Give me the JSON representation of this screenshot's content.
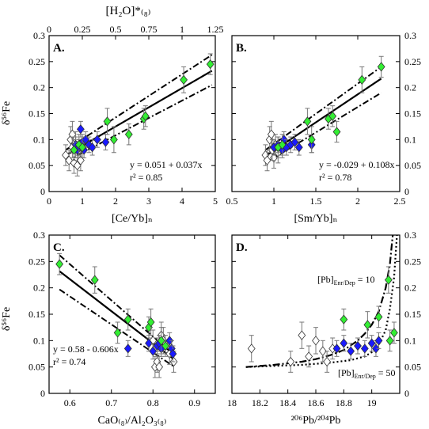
{
  "figure": {
    "ylabel_left": "δ⁵⁶Fe",
    "top_axis_label": "[H₂O]*₍₈₎"
  },
  "chart_data": [
    {
      "id": "A",
      "type": "scatter",
      "panel_label": "A.",
      "xlabel": "[Ce/Yb]ₙ",
      "ylabel": "δ⁵⁶Fe",
      "xlim": [
        0,
        5
      ],
      "ylim": [
        0,
        0.3
      ],
      "x_ticks": [
        0,
        1,
        2,
        3,
        4,
        5
      ],
      "x_tick_labels": [
        "0",
        "1",
        "2",
        "3",
        "4",
        "5"
      ],
      "y_ticks": [
        0,
        0.05,
        0.1,
        0.15,
        0.2,
        0.25,
        0.3
      ],
      "y_tick_labels": [
        "0",
        "0.05",
        "0.1",
        "0.15",
        "0.2",
        "0.25",
        "0.3"
      ],
      "top_axis": {
        "label": "[H₂O]*₍₈₎",
        "lim": [
          0,
          1.25
        ],
        "ticks": [
          0,
          0.25,
          0.5,
          0.75,
          1,
          1.25
        ],
        "tick_labels": [
          "0",
          "0.25",
          "0.5",
          "0.75",
          "1",
          "1.25"
        ]
      },
      "equation": "y = 0.051 + 0.037x",
      "r2": "r² = 0.85",
      "fit": {
        "intercept": 0.051,
        "slope": 0.037,
        "x_range": [
          0.5,
          4.9
        ]
      },
      "confidence_band": {
        "lower": [
          [
            0.5,
            0.058
          ],
          [
            4.9,
            0.205
          ]
        ],
        "upper": [
          [
            0.5,
            0.08
          ],
          [
            4.9,
            0.263
          ]
        ]
      },
      "series": [
        {
          "marker": "open-diamond",
          "color": "#ffffff",
          "points": [
            {
              "x": 0.5,
              "y": 0.07,
              "err": 0.02
            },
            {
              "x": 0.6,
              "y": 0.06,
              "err": 0.02
            },
            {
              "x": 0.65,
              "y": 0.1,
              "err": 0.025
            },
            {
              "x": 0.7,
              "y": 0.11,
              "err": 0.025
            },
            {
              "x": 0.75,
              "y": 0.055,
              "err": 0.02
            },
            {
              "x": 0.8,
              "y": 0.09,
              "err": 0.025
            },
            {
              "x": 0.85,
              "y": 0.05,
              "err": 0.02
            },
            {
              "x": 0.9,
              "y": 0.08,
              "err": 0.02
            },
            {
              "x": 0.7,
              "y": 0.085,
              "err": 0.02
            },
            {
              "x": 0.95,
              "y": 0.06,
              "err": 0.02
            }
          ]
        },
        {
          "marker": "filled-diamond",
          "color": "#1a1aff",
          "points": [
            {
              "x": 0.8,
              "y": 0.09,
              "err": 0.015
            },
            {
              "x": 0.85,
              "y": 0.08,
              "err": 0.015
            },
            {
              "x": 0.9,
              "y": 0.085,
              "err": 0.015
            },
            {
              "x": 0.95,
              "y": 0.12,
              "err": 0.015
            },
            {
              "x": 1.0,
              "y": 0.095,
              "err": 0.015
            },
            {
              "x": 1.05,
              "y": 0.08,
              "err": 0.015
            },
            {
              "x": 1.1,
              "y": 0.1,
              "err": 0.015
            },
            {
              "x": 1.2,
              "y": 0.09,
              "err": 0.015
            },
            {
              "x": 1.3,
              "y": 0.085,
              "err": 0.015
            },
            {
              "x": 1.45,
              "y": 0.1,
              "err": 0.015
            },
            {
              "x": 1.7,
              "y": 0.095,
              "err": 0.015
            }
          ]
        },
        {
          "marker": "filled-diamond",
          "color": "#33ee33",
          "points": [
            {
              "x": 0.75,
              "y": 0.08,
              "err": 0.02
            },
            {
              "x": 0.9,
              "y": 0.09,
              "err": 0.02
            },
            {
              "x": 1.0,
              "y": 0.085,
              "err": 0.02
            },
            {
              "x": 1.75,
              "y": 0.135,
              "err": 0.025
            },
            {
              "x": 1.95,
              "y": 0.1,
              "err": 0.025
            },
            {
              "x": 2.4,
              "y": 0.11,
              "err": 0.02
            },
            {
              "x": 2.85,
              "y": 0.14,
              "err": 0.02
            },
            {
              "x": 2.9,
              "y": 0.145,
              "err": 0.02
            },
            {
              "x": 4.05,
              "y": 0.215,
              "err": 0.025
            },
            {
              "x": 4.85,
              "y": 0.245,
              "err": 0.02
            }
          ]
        }
      ]
    },
    {
      "id": "B",
      "type": "scatter",
      "panel_label": "B.",
      "xlabel": "[Sm/Yb]ₙ",
      "ylabel": "",
      "xlim": [
        0.5,
        2.5
      ],
      "ylim": [
        0,
        0.3
      ],
      "x_ticks": [
        0.5,
        1,
        1.5,
        2,
        2.5
      ],
      "x_tick_labels": [
        "0.5",
        "1",
        "1.5",
        "2",
        "2.5"
      ],
      "y_ticks": [
        0,
        0.05,
        0.1,
        0.15,
        0.2,
        0.25,
        0.3
      ],
      "y_tick_labels": [
        "0",
        "0.05",
        "0.1",
        "0.15",
        "0.2",
        "0.25",
        "0.3"
      ],
      "equation": "y = -0.029 + 0.108x",
      "r2": "r² = 0.78",
      "fit": {
        "intercept": -0.029,
        "slope": 0.108,
        "x_range": [
          0.9,
          2.28
        ]
      },
      "confidence_band": {
        "lower": [
          [
            0.9,
            0.055
          ],
          [
            2.28,
            0.19
          ]
        ],
        "upper": [
          [
            0.9,
            0.08
          ],
          [
            2.28,
            0.24
          ]
        ]
      },
      "series": [
        {
          "marker": "open-diamond",
          "color": "#ffffff",
          "points": [
            {
              "x": 0.9,
              "y": 0.07,
              "err": 0.02
            },
            {
              "x": 0.92,
              "y": 0.06,
              "err": 0.02
            },
            {
              "x": 0.95,
              "y": 0.1,
              "err": 0.025
            },
            {
              "x": 0.97,
              "y": 0.11,
              "err": 0.025
            },
            {
              "x": 1.0,
              "y": 0.065,
              "err": 0.02
            },
            {
              "x": 1.02,
              "y": 0.09,
              "err": 0.02
            },
            {
              "x": 1.05,
              "y": 0.075,
              "err": 0.02
            },
            {
              "x": 0.98,
              "y": 0.08,
              "err": 0.02
            }
          ]
        },
        {
          "marker": "filled-diamond",
          "color": "#1a1aff",
          "points": [
            {
              "x": 1.0,
              "y": 0.085,
              "err": 0.015
            },
            {
              "x": 1.05,
              "y": 0.09,
              "err": 0.015
            },
            {
              "x": 1.1,
              "y": 0.08,
              "err": 0.015
            },
            {
              "x": 1.12,
              "y": 0.1,
              "err": 0.015
            },
            {
              "x": 1.15,
              "y": 0.085,
              "err": 0.015
            },
            {
              "x": 1.2,
              "y": 0.09,
              "err": 0.015
            },
            {
              "x": 1.25,
              "y": 0.095,
              "err": 0.015
            },
            {
              "x": 1.3,
              "y": 0.085,
              "err": 0.015
            },
            {
              "x": 1.45,
              "y": 0.09,
              "err": 0.015
            }
          ]
        },
        {
          "marker": "filled-diamond",
          "color": "#33ee33",
          "points": [
            {
              "x": 1.05,
              "y": 0.085,
              "err": 0.02
            },
            {
              "x": 1.1,
              "y": 0.09,
              "err": 0.02
            },
            {
              "x": 1.4,
              "y": 0.135,
              "err": 0.025
            },
            {
              "x": 1.45,
              "y": 0.1,
              "err": 0.025
            },
            {
              "x": 1.65,
              "y": 0.14,
              "err": 0.02
            },
            {
              "x": 1.7,
              "y": 0.145,
              "err": 0.02
            },
            {
              "x": 1.75,
              "y": 0.115,
              "err": 0.02
            },
            {
              "x": 2.05,
              "y": 0.215,
              "err": 0.025
            },
            {
              "x": 2.28,
              "y": 0.24,
              "err": 0.02
            }
          ]
        }
      ]
    },
    {
      "id": "C",
      "type": "scatter",
      "panel_label": "C.",
      "xlabel": "CaO₍₈₎/Al₂O₃₍₈₎",
      "ylabel": "δ⁵⁶Fe",
      "xlim": [
        0.55,
        0.95
      ],
      "ylim": [
        0,
        0.3
      ],
      "x_ticks": [
        0.6,
        0.7,
        0.8,
        0.9
      ],
      "x_tick_labels": [
        "0.6",
        "0.7",
        "0.8",
        "0.9"
      ],
      "y_ticks": [
        0,
        0.05,
        0.1,
        0.15,
        0.2,
        0.25,
        0.3
      ],
      "y_tick_labels": [
        "0",
        "0.05",
        "0.1",
        "0.15",
        "0.2",
        "0.25",
        "0.3"
      ],
      "equation": "y = 0.58 - 0.606x",
      "r2": "r² = 0.74",
      "fit": {
        "intercept": 0.58,
        "slope": -0.606,
        "x_range": [
          0.575,
          0.852
        ]
      },
      "confidence_band": {
        "lower": [
          [
            0.575,
            0.197
          ],
          [
            0.852,
            0.05
          ]
        ],
        "upper": [
          [
            0.575,
            0.262
          ],
          [
            0.852,
            0.072
          ]
        ]
      },
      "series": [
        {
          "marker": "open-diamond",
          "color": "#ffffff",
          "points": [
            {
              "x": 0.8,
              "y": 0.1,
              "err": 0.02
            },
            {
              "x": 0.805,
              "y": 0.05,
              "err": 0.02
            },
            {
              "x": 0.81,
              "y": 0.06,
              "err": 0.02
            },
            {
              "x": 0.815,
              "y": 0.05,
              "err": 0.02
            },
            {
              "x": 0.82,
              "y": 0.11,
              "err": 0.025
            },
            {
              "x": 0.825,
              "y": 0.1,
              "err": 0.025
            },
            {
              "x": 0.84,
              "y": 0.075,
              "err": 0.02
            },
            {
              "x": 0.85,
              "y": 0.06,
              "err": 0.02
            }
          ]
        },
        {
          "marker": "filled-diamond",
          "color": "#1a1aff",
          "points": [
            {
              "x": 0.74,
              "y": 0.085,
              "err": 0.015
            },
            {
              "x": 0.79,
              "y": 0.095,
              "err": 0.015
            },
            {
              "x": 0.8,
              "y": 0.08,
              "err": 0.015
            },
            {
              "x": 0.81,
              "y": 0.09,
              "err": 0.015
            },
            {
              "x": 0.815,
              "y": 0.095,
              "err": 0.015
            },
            {
              "x": 0.82,
              "y": 0.085,
              "err": 0.015
            },
            {
              "x": 0.84,
              "y": 0.1,
              "err": 0.015
            },
            {
              "x": 0.845,
              "y": 0.085,
              "err": 0.015
            },
            {
              "x": 0.848,
              "y": 0.075,
              "err": 0.015
            }
          ]
        },
        {
          "marker": "filled-diamond",
          "color": "#33ee33",
          "points": [
            {
              "x": 0.575,
              "y": 0.245,
              "err": 0.02
            },
            {
              "x": 0.66,
              "y": 0.215,
              "err": 0.025
            },
            {
              "x": 0.715,
              "y": 0.115,
              "err": 0.02
            },
            {
              "x": 0.74,
              "y": 0.14,
              "err": 0.02
            },
            {
              "x": 0.79,
              "y": 0.125,
              "err": 0.02
            },
            {
              "x": 0.795,
              "y": 0.135,
              "err": 0.025
            },
            {
              "x": 0.82,
              "y": 0.1,
              "err": 0.025
            },
            {
              "x": 0.83,
              "y": 0.09,
              "err": 0.02
            }
          ]
        }
      ]
    },
    {
      "id": "D",
      "type": "scatter",
      "panel_label": "D.",
      "xlabel": "²⁰⁶Pb/²⁰⁴Pb",
      "ylabel": "",
      "xlim": [
        18,
        19.2
      ],
      "ylim": [
        0,
        0.3
      ],
      "x_ticks": [
        18,
        18.2,
        18.4,
        18.6,
        18.8,
        19
      ],
      "x_tick_labels": [
        "18",
        "18.2",
        "18.4",
        "18.6",
        "18.8",
        "19"
      ],
      "y_ticks": [
        0,
        0.05,
        0.1,
        0.15,
        0.2,
        0.25,
        0.3
      ],
      "y_tick_labels": [
        "0",
        "0.05",
        "0.1",
        "0.15",
        "0.2",
        "0.25",
        "0.3"
      ],
      "mixing_curves": [
        {
          "label": "[Pb]Enr/Dep = 10",
          "label_main": "[Pb]",
          "label_sub": "Enr/Dep",
          "label_tail": " = 10",
          "style": "dashdot",
          "points": [
            [
              18.1,
              0.05
            ],
            [
              18.3,
              0.054
            ],
            [
              18.5,
              0.06
            ],
            [
              18.6,
              0.065
            ],
            [
              18.7,
              0.072
            ],
            [
              18.8,
              0.082
            ],
            [
              18.9,
              0.1
            ],
            [
              18.95,
              0.113
            ],
            [
              19.0,
              0.13
            ],
            [
              19.05,
              0.155
            ],
            [
              19.1,
              0.2
            ],
            [
              19.13,
              0.245
            ],
            [
              19.15,
              0.3
            ]
          ]
        },
        {
          "label": "[Pb]Enr/Dep = 50",
          "label_main": "[Pb]",
          "label_sub": "Enr/Dep",
          "label_tail": " = 50",
          "style": "dotted",
          "points": [
            [
              18.1,
              0.05
            ],
            [
              18.3,
              0.052
            ],
            [
              18.5,
              0.054
            ],
            [
              18.7,
              0.058
            ],
            [
              18.85,
              0.063
            ],
            [
              18.95,
              0.07
            ],
            [
              19.0,
              0.078
            ],
            [
              19.05,
              0.092
            ],
            [
              19.1,
              0.12
            ],
            [
              19.13,
              0.16
            ],
            [
              19.16,
              0.22
            ],
            [
              19.18,
              0.3
            ]
          ]
        }
      ],
      "series": [
        {
          "marker": "open-diamond",
          "color": "#ffffff",
          "points": [
            {
              "x": 18.14,
              "y": 0.085,
              "err": 0.025
            },
            {
              "x": 18.42,
              "y": 0.06,
              "err": 0.02
            },
            {
              "x": 18.5,
              "y": 0.11,
              "err": 0.025
            },
            {
              "x": 18.55,
              "y": 0.07,
              "err": 0.02
            },
            {
              "x": 18.6,
              "y": 0.1,
              "err": 0.025
            },
            {
              "x": 18.65,
              "y": 0.08,
              "err": 0.02
            },
            {
              "x": 18.68,
              "y": 0.06,
              "err": 0.02
            },
            {
              "x": 18.72,
              "y": 0.085,
              "err": 0.02
            }
          ]
        },
        {
          "marker": "filled-diamond",
          "color": "#1a1aff",
          "points": [
            {
              "x": 18.75,
              "y": 0.085,
              "err": 0.015
            },
            {
              "x": 18.8,
              "y": 0.095,
              "err": 0.015
            },
            {
              "x": 18.85,
              "y": 0.08,
              "err": 0.015
            },
            {
              "x": 18.9,
              "y": 0.09,
              "err": 0.015
            },
            {
              "x": 18.95,
              "y": 0.085,
              "err": 0.015
            },
            {
              "x": 19.0,
              "y": 0.095,
              "err": 0.015
            },
            {
              "x": 19.03,
              "y": 0.085,
              "err": 0.015
            },
            {
              "x": 19.05,
              "y": 0.1,
              "err": 0.015
            }
          ]
        },
        {
          "marker": "filled-diamond",
          "color": "#33ee33",
          "points": [
            {
              "x": 18.8,
              "y": 0.14,
              "err": 0.02
            },
            {
              "x": 18.97,
              "y": 0.13,
              "err": 0.025
            },
            {
              "x": 19.05,
              "y": 0.145,
              "err": 0.02
            },
            {
              "x": 19.12,
              "y": 0.215,
              "err": 0.025
            },
            {
              "x": 19.13,
              "y": 0.1,
              "err": 0.02
            },
            {
              "x": 19.16,
              "y": 0.115,
              "err": 0.02
            }
          ]
        }
      ]
    }
  ]
}
